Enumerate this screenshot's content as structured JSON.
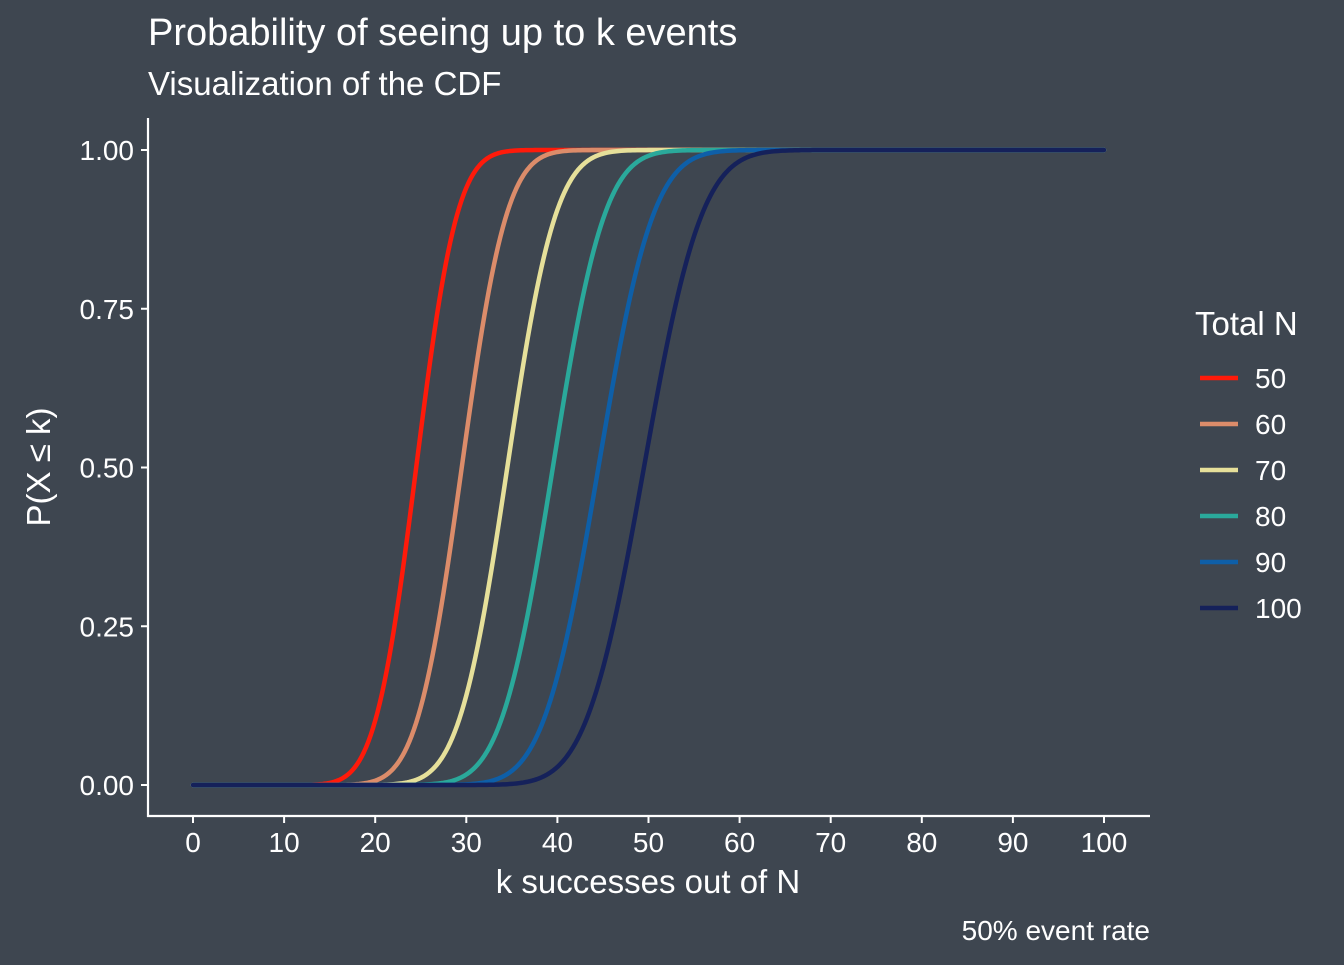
{
  "colors": {
    "background": "#3e4650",
    "text": "#ffffff",
    "axis": "#ffffff"
  },
  "chart_data": {
    "type": "line",
    "title": "Probability of seeing up to k events",
    "subtitle": "Visualization of the CDF",
    "xlabel": "k successes out of N",
    "ylabel": "P(X ≤ k)",
    "caption": "50% event rate",
    "legend_title": "Total N",
    "legend_position": "right",
    "grid": false,
    "success_probability": 0.5,
    "xlim": [
      0,
      100
    ],
    "ylim": [
      0,
      1
    ],
    "x_ticks": [
      0,
      10,
      20,
      30,
      40,
      50,
      60,
      70,
      80,
      90,
      100
    ],
    "x_tick_labels": [
      "0",
      "10",
      "20",
      "30",
      "40",
      "50",
      "60",
      "70",
      "80",
      "90",
      "100"
    ],
    "y_ticks": [
      0,
      0.25,
      0.5,
      0.75,
      1
    ],
    "y_tick_labels": [
      "0.00",
      "0.25",
      "0.50",
      "0.75",
      "1.00"
    ],
    "series": [
      {
        "name": "50",
        "n": 50,
        "color": "#ff1a0a"
      },
      {
        "name": "60",
        "n": 60,
        "color": "#dc8c6a"
      },
      {
        "name": "70",
        "n": 70,
        "color": "#e6e09a"
      },
      {
        "name": "80",
        "n": 80,
        "color": "#2aa99b"
      },
      {
        "name": "90",
        "n": 90,
        "color": "#0e5fa8"
      },
      {
        "name": "100",
        "n": 100,
        "color": "#15215a"
      }
    ]
  }
}
